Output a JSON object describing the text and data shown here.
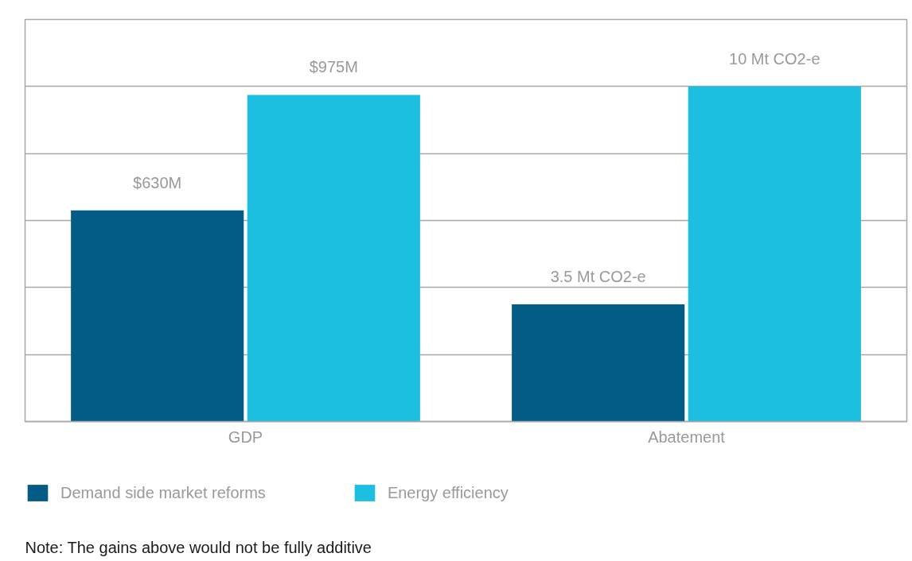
{
  "chart_data": {
    "type": "bar",
    "categories": [
      "GDP",
      "Abatement"
    ],
    "series": [
      {
        "name": "Demand side market reforms",
        "color": "#035c86",
        "values": [
          630,
          null
        ],
        "value_labels": [
          "$630M",
          null
        ]
      },
      {
        "name": "Energy efficiency",
        "color": "#1cbfdf",
        "values": [
          975,
          null
        ],
        "value_labels": [
          "$975M",
          null
        ]
      },
      {
        "color": "#035c86",
        "axis": "y2",
        "values": [
          null,
          3.5
        ],
        "value_labels": [
          null,
          "3.5 Mt CO2-e"
        ]
      },
      {
        "color": "#1cbfdf",
        "axis": "y2",
        "values": [
          null,
          10
        ],
        "value_labels": [
          null,
          "10 Mt CO2-e"
        ]
      }
    ],
    "ylim": [
      0,
      1200
    ],
    "y2lim": [
      0,
      12
    ],
    "tick_labels": "x",
    "grid": "y",
    "legend": "bottom",
    "annotations": [
      "Note: The gains above would not be fully additive"
    ]
  }
}
